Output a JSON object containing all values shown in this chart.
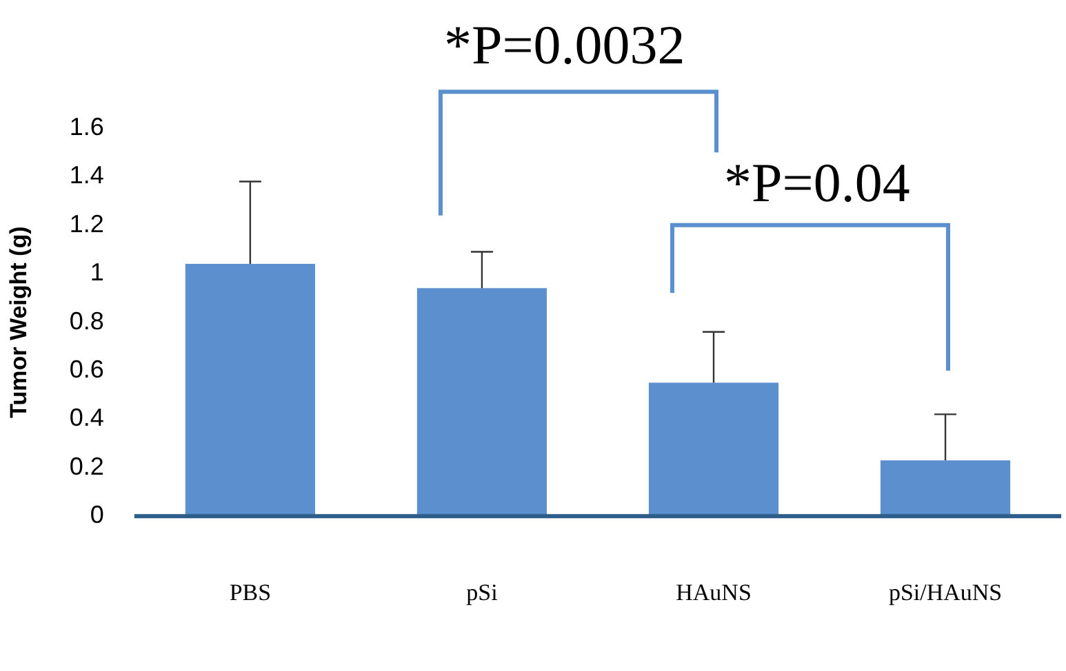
{
  "chart_data": {
    "type": "bar",
    "ylabel": "Tumor Weight (g)",
    "categories": [
      "PBS",
      "pSi",
      "HAuNS",
      "pSi/HAuNS"
    ],
    "values": [
      1.04,
      0.94,
      0.55,
      0.23
    ],
    "color": "#5b8fcd",
    "errors": [
      [
        1.04,
        1.38
      ],
      [
        0.94,
        1.09
      ],
      [
        0.55,
        0.76
      ],
      [
        0.23,
        0.42
      ]
    ],
    "ylim": [
      0,
      1.6
    ],
    "yticks": [
      0,
      0.2,
      0.4,
      0.6,
      0.8,
      1,
      1.2,
      1.4,
      1.6
    ],
    "grid": false,
    "legend": false,
    "annotations": [
      "*P=0.0032",
      "*P=0.04"
    ]
  }
}
